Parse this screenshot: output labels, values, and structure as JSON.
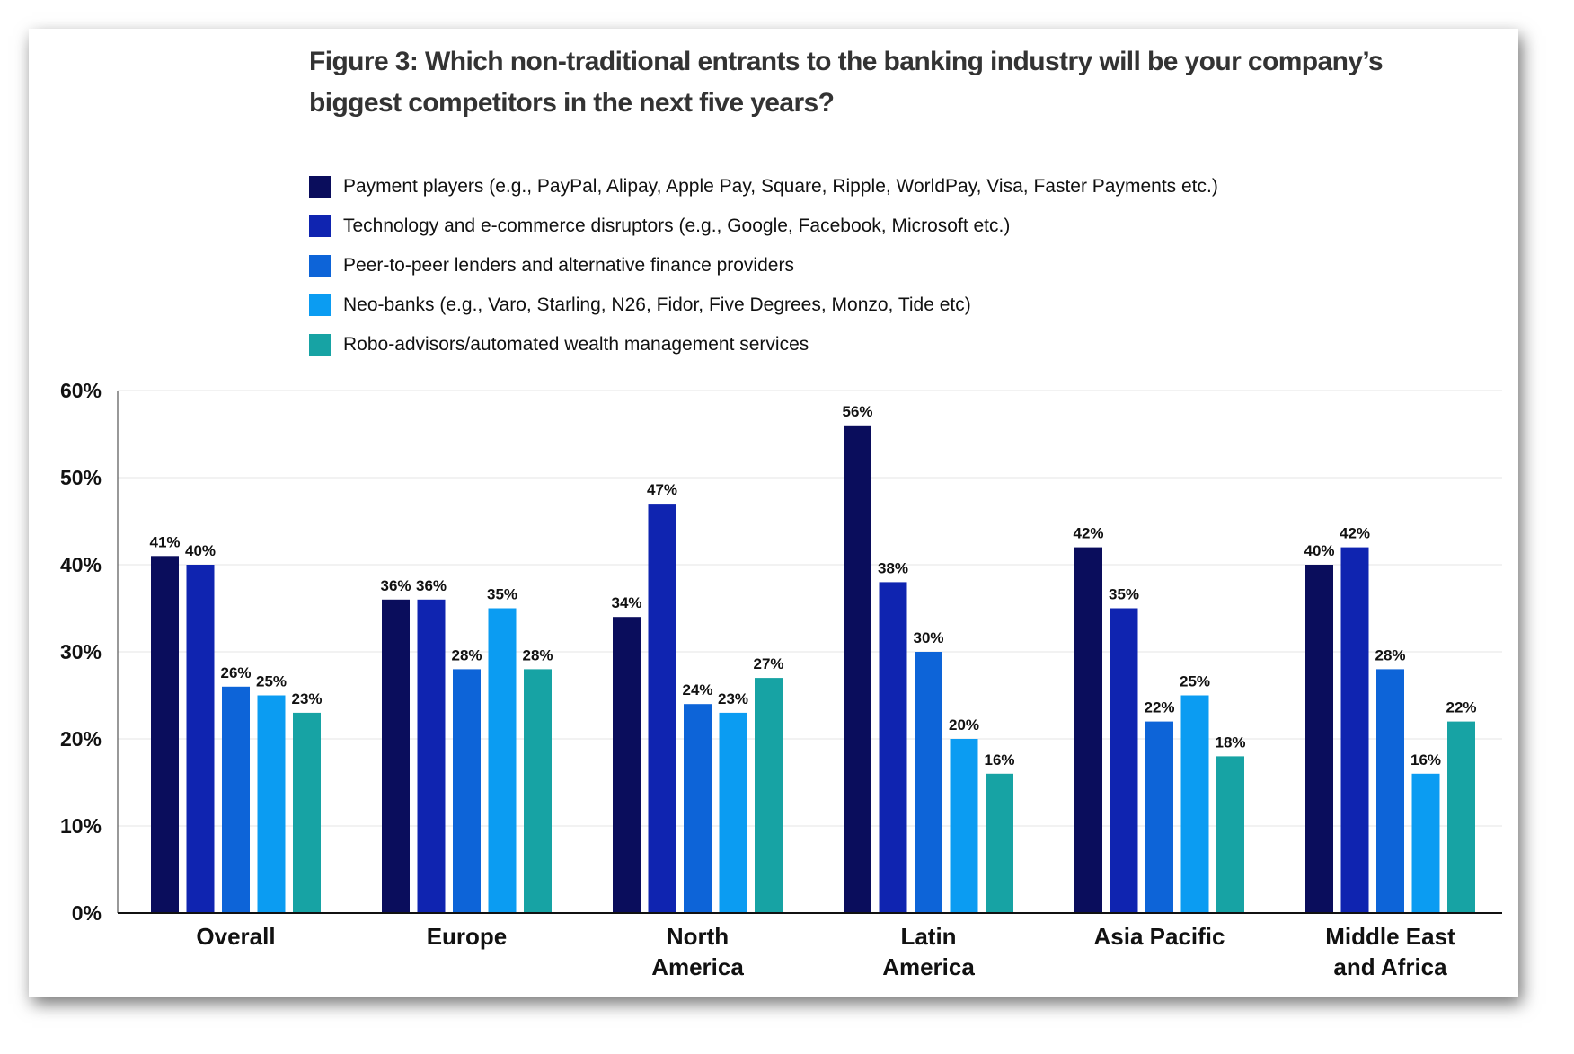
{
  "chart_data": {
    "type": "bar",
    "title": "Figure 3: Which non-traditional entrants to the banking industry will be your company’s biggest competitors in the next five years?",
    "categories": [
      [
        "Overall"
      ],
      [
        "Europe"
      ],
      [
        "North",
        "America"
      ],
      [
        "Latin",
        "America"
      ],
      [
        "Asia Pacific"
      ],
      [
        "Middle East",
        "and Africa"
      ]
    ],
    "series": [
      {
        "name": "Payment players (e.g., PayPal, Alipay, Apple Pay, Square, Ripple, WorldPay, Visa, Faster Payments etc.)",
        "color": "#0a0d5c",
        "values": [
          41,
          36,
          34,
          56,
          42,
          40
        ]
      },
      {
        "name": "Technology and e-commerce disruptors (e.g., Google, Facebook, Microsoft etc.)",
        "color": "#0f24b0",
        "values": [
          40,
          36,
          47,
          38,
          35,
          42
        ]
      },
      {
        "name": "Peer-to-peer lenders and alternative finance providers",
        "color": "#0d64d8",
        "values": [
          26,
          28,
          24,
          30,
          22,
          28
        ]
      },
      {
        "name": "Neo-banks (e.g., Varo, Starling, N26, Fidor, Five Degrees, Monzo, Tide etc)",
        "color": "#0b9cf2",
        "values": [
          25,
          35,
          23,
          20,
          25,
          16
        ]
      },
      {
        "name": "Robo-advisors/automated wealth management services",
        "color": "#17a3a4",
        "values": [
          23,
          28,
          27,
          16,
          18,
          22
        ]
      }
    ],
    "ylim": [
      0,
      60
    ],
    "yticks": [
      "0%",
      "10%",
      "20%",
      "30%",
      "40%",
      "50%",
      "60%"
    ],
    "legend_position": "top",
    "grid": true
  }
}
